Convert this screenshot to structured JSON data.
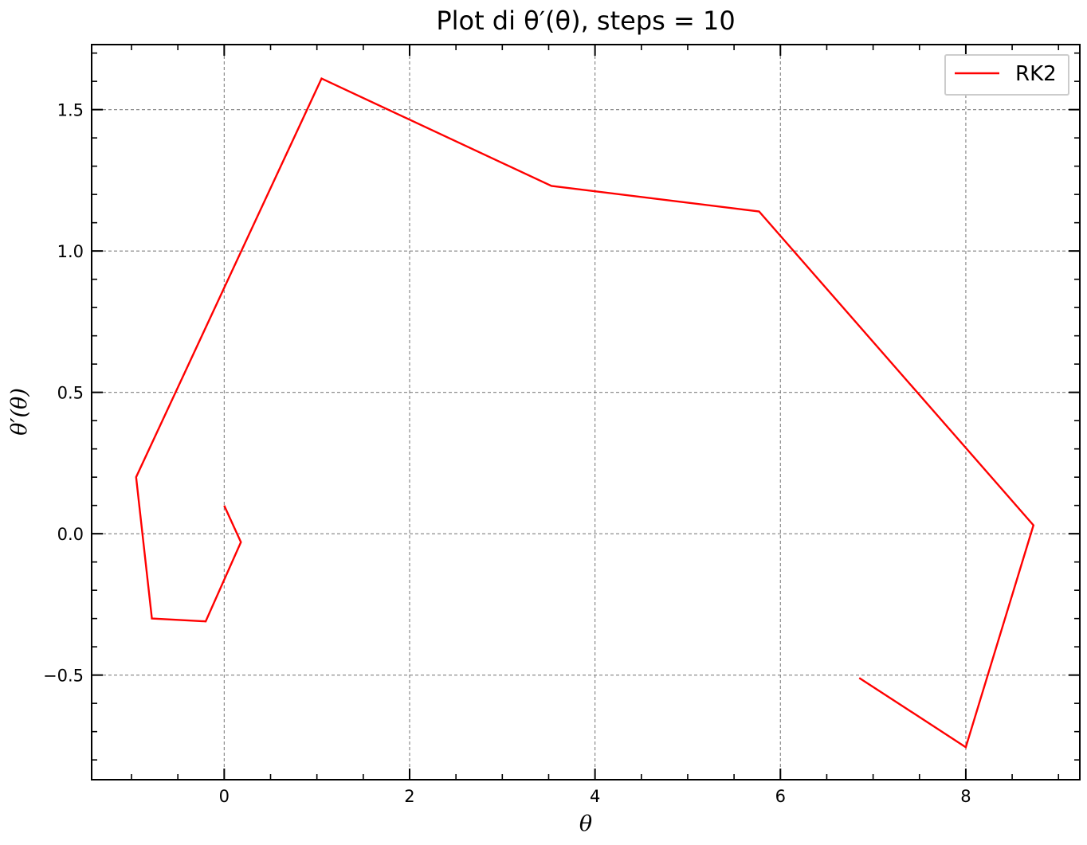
{
  "chart_data": {
    "type": "line",
    "title": "Plot di θ′(θ), steps = 10",
    "xlabel": "θ",
    "ylabel": "θ′(θ)",
    "xlim": [
      -1.43,
      9.23
    ],
    "ylim": [
      -0.87,
      1.73
    ],
    "x_ticks": [
      0,
      2,
      4,
      6,
      8
    ],
    "x_tick_labels": [
      "0",
      "2",
      "4",
      "6",
      "8"
    ],
    "x_minor_step": 0.5,
    "y_ticks": [
      -0.5,
      0.0,
      0.5,
      1.0,
      1.5
    ],
    "y_tick_labels": [
      "−0.5",
      "0.0",
      "0.5",
      "1.0",
      "1.5"
    ],
    "y_minor_step": 0.1,
    "grid": true,
    "legend_position": "top-right",
    "series": [
      {
        "name": "RK2",
        "color": "#ff0000",
        "x": [
          0.0,
          0.18,
          -0.2,
          -0.78,
          -0.95,
          1.05,
          3.53,
          5.77,
          8.73,
          8.0,
          6.85
        ],
        "y": [
          0.1,
          -0.03,
          -0.31,
          -0.3,
          0.2,
          1.61,
          1.23,
          1.14,
          0.03,
          -0.755,
          -0.51
        ]
      }
    ]
  }
}
